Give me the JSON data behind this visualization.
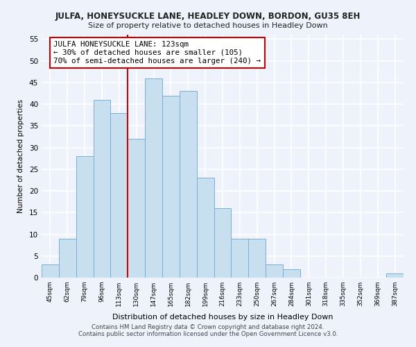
{
  "title": "JULFA, HONEYSUCKLE LANE, HEADLEY DOWN, BORDON, GU35 8EH",
  "subtitle": "Size of property relative to detached houses in Headley Down",
  "xlabel": "Distribution of detached houses by size in Headley Down",
  "ylabel": "Number of detached properties",
  "bin_labels": [
    "45sqm",
    "62sqm",
    "79sqm",
    "96sqm",
    "113sqm",
    "130sqm",
    "147sqm",
    "165sqm",
    "182sqm",
    "199sqm",
    "216sqm",
    "233sqm",
    "250sqm",
    "267sqm",
    "284sqm",
    "301sqm",
    "318sqm",
    "335sqm",
    "352sqm",
    "369sqm",
    "387sqm"
  ],
  "bar_heights": [
    3,
    9,
    28,
    41,
    38,
    32,
    46,
    42,
    43,
    23,
    16,
    9,
    9,
    3,
    2,
    0,
    0,
    0,
    0,
    0,
    1
  ],
  "bar_color": "#c8dff0",
  "bar_edge_color": "#7ab0d4",
  "vline_x": 4.5,
  "vline_color": "#cc0000",
  "annotation_title": "JULFA HONEYSUCKLE LANE: 123sqm",
  "annotation_line1": "← 30% of detached houses are smaller (105)",
  "annotation_line2": "70% of semi-detached houses are larger (240) →",
  "annotation_box_color": "#ffffff",
  "annotation_box_edge": "#cc0000",
  "ylim": [
    0,
    56
  ],
  "yticks": [
    0,
    5,
    10,
    15,
    20,
    25,
    30,
    35,
    40,
    45,
    50,
    55
  ],
  "footer1": "Contains HM Land Registry data © Crown copyright and database right 2024.",
  "footer2": "Contains public sector information licensed under the Open Government Licence v3.0.",
  "background_color": "#eef2fb",
  "grid_color": "#ffffff"
}
